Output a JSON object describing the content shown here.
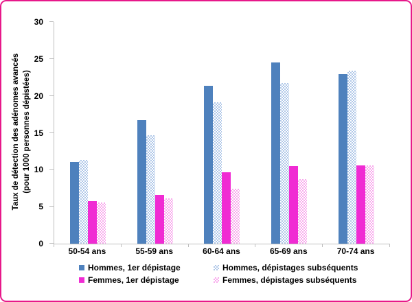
{
  "frame": {
    "border_color": "#E7188A",
    "background": "#FFFFFF"
  },
  "chart_data": {
    "type": "bar",
    "title": "",
    "ylabel_line1": "Taux de détection des adénomes avancés",
    "ylabel_line2": "(pour 1000 personnes dépistées)",
    "xlabel": "",
    "categories": [
      "50-54 ans",
      "55-59 ans",
      "60-64 ans",
      "65-69 ans",
      "70-74 ans"
    ],
    "series": [
      {
        "name": "Hommes, 1er dépistage",
        "style": "solid",
        "color": "#4E81BD",
        "values": [
          11.1,
          16.7,
          21.4,
          24.5,
          22.9
        ]
      },
      {
        "name": "Hommes, dépistages subséquents",
        "style": "pattern",
        "color": "#AFC7E8",
        "values": [
          11.3,
          14.7,
          19.1,
          21.7,
          23.4
        ]
      },
      {
        "name": "Femmes, 1er dépistage",
        "style": "solid",
        "color": "#F02BD3",
        "values": [
          5.8,
          6.6,
          9.7,
          10.5,
          10.6
        ]
      },
      {
        "name": "Femmes, dépistages subséquents",
        "style": "pattern",
        "color": "#F8A9EC",
        "values": [
          5.6,
          6.1,
          7.4,
          8.7,
          10.6
        ]
      }
    ],
    "ylim": [
      0,
      30
    ],
    "yticks": [
      0,
      5,
      10,
      15,
      20,
      25,
      30
    ],
    "grid": false,
    "legend_position": "bottom",
    "axis_color": "#BEBEBE"
  }
}
